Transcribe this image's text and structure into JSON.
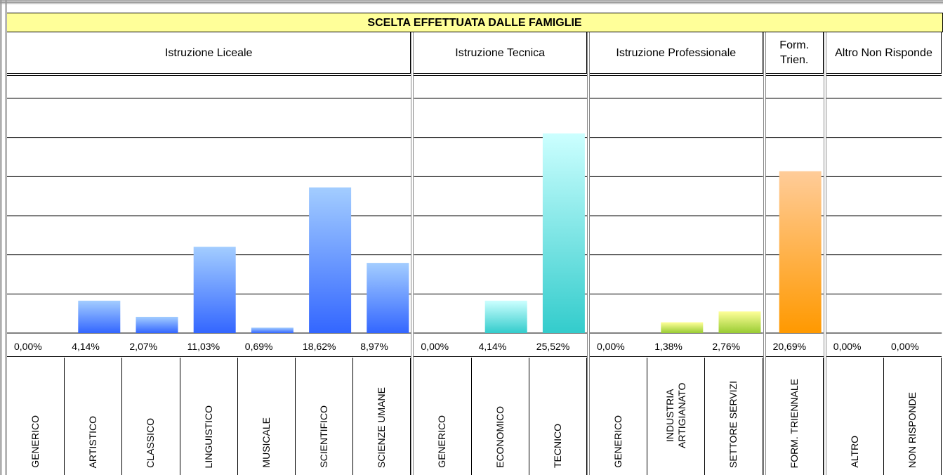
{
  "chart_data": {
    "type": "bar",
    "title": "SCELTA EFFETTUATA DALLE FAMIGLIE",
    "ylim": [
      0,
      30
    ],
    "yticks": [
      0,
      5,
      10,
      15,
      20,
      25,
      30
    ],
    "grid": true,
    "groups": [
      {
        "name": "Istruzione Liceale",
        "color": [
          "#a3cdff",
          "#3366ff"
        ],
        "categories": [
          "GENERICO",
          "ARTISTICO",
          "CLASSICO",
          "LINGUISTICO",
          "MUSICALE",
          "SCIENTIFICO",
          "SCIENZE UMANE"
        ],
        "values": [
          0,
          4.14,
          2.07,
          11.03,
          0.69,
          18.62,
          8.97
        ],
        "value_labels": [
          "0,00%",
          "4,14%",
          "2,07%",
          "11,03%",
          "0,69%",
          "18,62%",
          "8,97%"
        ]
      },
      {
        "name": "Istruzione Tecnica",
        "color": [
          "#ccffff",
          "#33cccc"
        ],
        "categories": [
          "GENERICO",
          "ECONOMICO",
          "TECNICO"
        ],
        "values": [
          0,
          4.14,
          25.52
        ],
        "value_labels": [
          "0,00%",
          "4,14%",
          "25,52%"
        ]
      },
      {
        "name": "Istruzione Professionale",
        "color": [
          "#ffff99",
          "#99cc33"
        ],
        "categories": [
          "GENERICO",
          "INDUSTRIA ARTIGIANATO",
          "SETTORE SERVIZI"
        ],
        "values": [
          0,
          1.38,
          2.76
        ],
        "value_labels": [
          "0,00%",
          "1,38%",
          "2,76%"
        ]
      },
      {
        "name": "Form. Trien.",
        "color": [
          "#ffcc99",
          "#ff9900"
        ],
        "categories": [
          "FORM. TRIENNALE"
        ],
        "values": [
          20.69
        ],
        "value_labels": [
          "20,69%"
        ]
      },
      {
        "name": "Altro Non Risponde",
        "color": [
          "#cccccc",
          "#999999"
        ],
        "categories": [
          "ALTRO",
          "NON RISPONDE"
        ],
        "values": [
          0,
          0
        ],
        "value_labels": [
          "0,00%",
          "0,00%"
        ]
      }
    ]
  }
}
